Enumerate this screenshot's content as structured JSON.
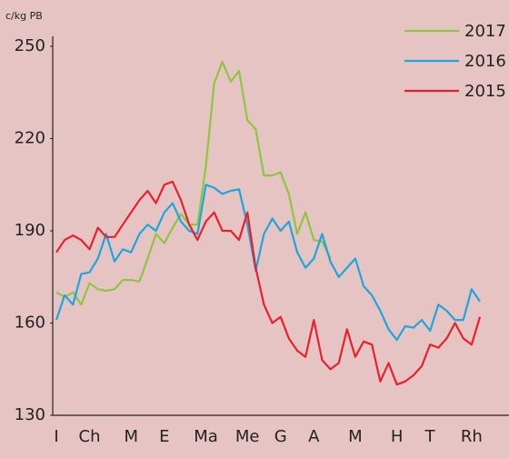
{
  "chart_data": {
    "type": "line",
    "y_label": "c/kg PB",
    "categories": [
      "I",
      null,
      null,
      null,
      "Ch",
      null,
      null,
      null,
      null,
      "M",
      null,
      null,
      null,
      "E",
      null,
      null,
      null,
      null,
      "Ma",
      null,
      null,
      null,
      null,
      "Me",
      null,
      null,
      null,
      "G",
      null,
      null,
      null,
      "A",
      null,
      null,
      null,
      null,
      "M",
      null,
      null,
      null,
      null,
      "H",
      null,
      null,
      null,
      "T",
      null,
      null,
      null,
      null,
      "Rh",
      null
    ],
    "series": [
      {
        "name": "2017",
        "color": "#8dc63f",
        "values": [
          170,
          168.5,
          170,
          166,
          173,
          171,
          170.5,
          171,
          174,
          174,
          173.5,
          181,
          189,
          186,
          191,
          195.5,
          192,
          192,
          211,
          238,
          245,
          238.5,
          242,
          226,
          223,
          208,
          208,
          209,
          202,
          189,
          196,
          187,
          186.5,
          181,
          null,
          null,
          null,
          null,
          null,
          null,
          null,
          null,
          null,
          null,
          null,
          null,
          null,
          null,
          null,
          null,
          null,
          null
        ]
      },
      {
        "name": "2016",
        "color": "#1ba6e0",
        "values": [
          161,
          169,
          166,
          176,
          176.5,
          181,
          189,
          180,
          184,
          183,
          189,
          192,
          190,
          196,
          199,
          193,
          190,
          189,
          205,
          204,
          202,
          203,
          203.5,
          192,
          177,
          189,
          194,
          190,
          193,
          183,
          178,
          181,
          189,
          180,
          175,
          178,
          181,
          172,
          169,
          164,
          158,
          154.5,
          159,
          158.5,
          161,
          157.5,
          166,
          164,
          161,
          161,
          171,
          167
        ]
      },
      {
        "name": "2015",
        "color": "#e8212b",
        "values": [
          183,
          187,
          188.5,
          187,
          184,
          191,
          188,
          188,
          192,
          196,
          200,
          203,
          199,
          205,
          206,
          200,
          192,
          187,
          193,
          196,
          190,
          190,
          187,
          196,
          178,
          166,
          160,
          162,
          155,
          151,
          149,
          161,
          148,
          145,
          147,
          158,
          149,
          154,
          153,
          141,
          147,
          140,
          141,
          143,
          146,
          153,
          152,
          155,
          160,
          155,
          153,
          162
        ]
      }
    ],
    "ylim": [
      130,
      250
    ],
    "yticks": [
      130,
      160,
      190,
      220,
      250
    ],
    "grid": false,
    "legend": "top-right"
  }
}
